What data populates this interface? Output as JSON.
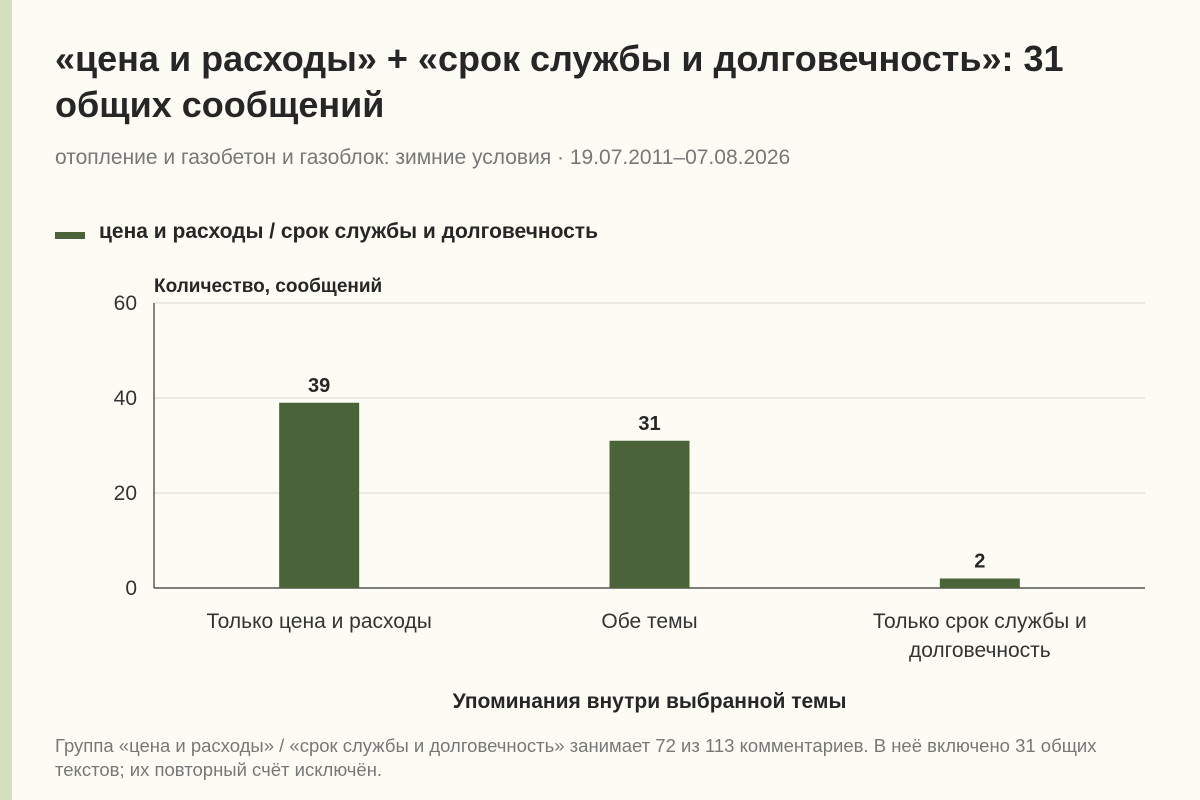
{
  "title": "«цена и расходы» + «срок службы и долговечность»: 31 общих сообщений",
  "subtitle": "отопление и газобетон и газоблок: зимние условия · 19.07.2011–07.08.2026",
  "legend": {
    "label": "цена и расходы / срок службы и долговечность",
    "color": "#4a6339"
  },
  "footnote": "Группа «цена и расходы» / «срок службы и долговечность» занимает 72 из 113 комментариев. В неё включено 31 общих текстов; их повторный счёт исключён.",
  "chart_data": {
    "type": "bar",
    "ylabel": "Количество, сообщений",
    "xlabel": "Упоминания внутри выбранной темы",
    "ylim": [
      0,
      60
    ],
    "yticks": [
      0,
      20,
      40,
      60
    ],
    "grid": true,
    "legend_position": "top-left",
    "categories": [
      [
        "Только цена и расходы"
      ],
      [
        "Обе темы"
      ],
      [
        "Только срок службы и",
        "долговечность"
      ]
    ],
    "series": [
      {
        "name": "цена и расходы / срок службы и долговечность",
        "values": [
          39,
          31,
          2
        ],
        "color": "#4a6339"
      }
    ]
  }
}
